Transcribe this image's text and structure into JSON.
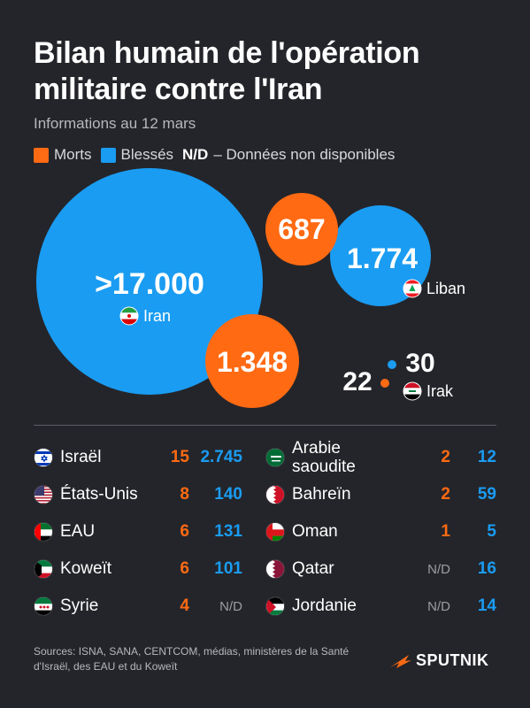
{
  "header": {
    "title": "Bilan humain de l'opération militaire contre l'Iran",
    "subtitle": "Informations au 12 mars"
  },
  "legend": {
    "dead_label": "Morts",
    "injured_label": "Blessés",
    "nd_key": "N/D",
    "nd_label": "– Données non disponibles"
  },
  "colors": {
    "dead": "#ff6a13",
    "injured": "#1a9cf2",
    "background": "#24252a"
  },
  "chart_data": {
    "type": "bubble",
    "series": [
      {
        "name": "Morts",
        "color": "#ff6a13"
      },
      {
        "name": "Blessés",
        "color": "#1a9cf2"
      }
    ],
    "points": [
      {
        "country": "Iran",
        "flag": "iran-flag-icon",
        "injured_label": ">17.000",
        "injured": 17000,
        "dead_label": "1.348",
        "dead": 1348
      },
      {
        "country": "Liban",
        "flag": "lebanon-flag-icon",
        "injured_label": "1.774",
        "injured": 1774,
        "dead_label": "687",
        "dead": 687
      },
      {
        "country": "Irak",
        "flag": "iraq-flag-icon",
        "injured_label": "30",
        "injured": 30,
        "dead_label": "22",
        "dead": 22
      }
    ]
  },
  "table": {
    "left": [
      {
        "country": "Israël",
        "flag": "israel-flag-icon",
        "dead": "15",
        "injured": "2.745"
      },
      {
        "country": "États-Unis",
        "flag": "usa-flag-icon",
        "dead": "8",
        "injured": "140"
      },
      {
        "country": "EAU",
        "flag": "uae-flag-icon",
        "dead": "6",
        "injured": "131"
      },
      {
        "country": "Koweït",
        "flag": "kuwait-flag-icon",
        "dead": "6",
        "injured": "101"
      },
      {
        "country": "Syrie",
        "flag": "syria-flag-icon",
        "dead": "4",
        "injured": "N/D"
      }
    ],
    "right": [
      {
        "country": "Arabie saoudite",
        "flag": "saudi-flag-icon",
        "dead": "2",
        "injured": "12"
      },
      {
        "country": "Bahreïn",
        "flag": "bahrain-flag-icon",
        "dead": "2",
        "injured": "59"
      },
      {
        "country": "Oman",
        "flag": "oman-flag-icon",
        "dead": "1",
        "injured": "5"
      },
      {
        "country": "Qatar",
        "flag": "qatar-flag-icon",
        "dead": "N/D",
        "injured": "16"
      },
      {
        "country": "Jordanie",
        "flag": "jordan-flag-icon",
        "dead": "N/D",
        "injured": "14"
      }
    ]
  },
  "footer": {
    "sources": "Sources: ISNA, SANA, CENTCOM, médias, ministères de la Santé d'Israël, des EAU et du Koweït",
    "brand": "SPUTNIK"
  }
}
